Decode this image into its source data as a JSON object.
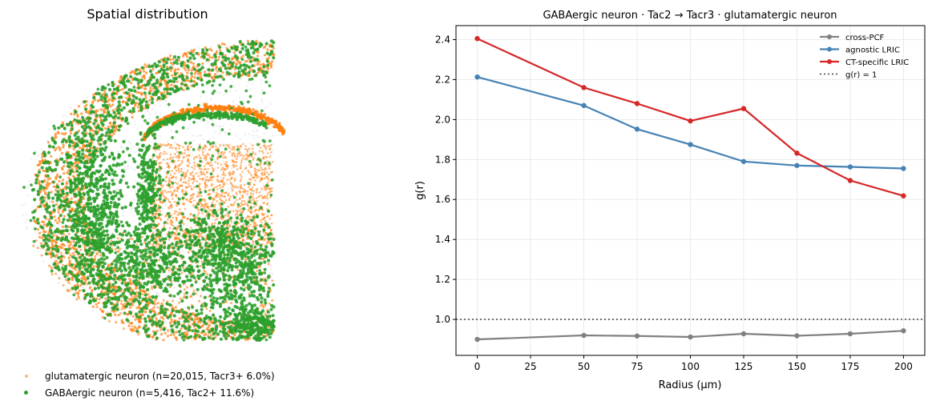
{
  "chart_data": [
    {
      "type": "scatter",
      "title": "Spatial distribution",
      "series": [
        {
          "name": "glutamatergic neuron  (n=20,015,  Tacr3+ 6.0%)",
          "color": "#ff7f0e"
        },
        {
          "name": "GABAergic neuron  (n=5,416,  Tac2+ 11.6%)",
          "color": "#2ca02c"
        }
      ],
      "grid": false,
      "axes": "off",
      "legend": "bottom-left"
    },
    {
      "type": "line",
      "title": "GABAergic neuron  ·  Tac2 → Tacr3  ·  glutamatergic neuron",
      "xlabel": "Radius (μm)",
      "ylabel": "g(r)",
      "x": [
        0,
        50,
        75,
        100,
        125,
        150,
        175,
        200
      ],
      "xticks": [
        "0",
        "25",
        "50",
        "75",
        "100",
        "125",
        "150",
        "175",
        "200"
      ],
      "yticks": [
        "1.0",
        "1.2",
        "1.4",
        "1.6",
        "1.8",
        "2.0",
        "2.2",
        "2.4"
      ],
      "xlim": [
        -10,
        210
      ],
      "ylim": [
        0.82,
        2.47
      ],
      "grid": true,
      "legend": "top-right",
      "series": [
        {
          "name": "cross-PCF",
          "color": "#808080",
          "values": [
            0.9,
            0.92,
            0.917,
            0.912,
            0.928,
            0.918,
            0.928,
            0.943
          ]
        },
        {
          "name": "agnostic LRIC",
          "color": "#4682b4",
          "values": [
            2.213,
            2.07,
            1.952,
            1.875,
            1.79,
            1.77,
            1.763,
            1.755
          ]
        },
        {
          "name": "CT-specific LRIC",
          "color": "#d62728",
          "values": [
            2.405,
            2.16,
            2.08,
            1.993,
            2.055,
            1.832,
            1.695,
            1.618
          ]
        }
      ],
      "reference_line": {
        "name": "g(r) = 1",
        "y": 1.0,
        "color": "#444444"
      }
    }
  ]
}
